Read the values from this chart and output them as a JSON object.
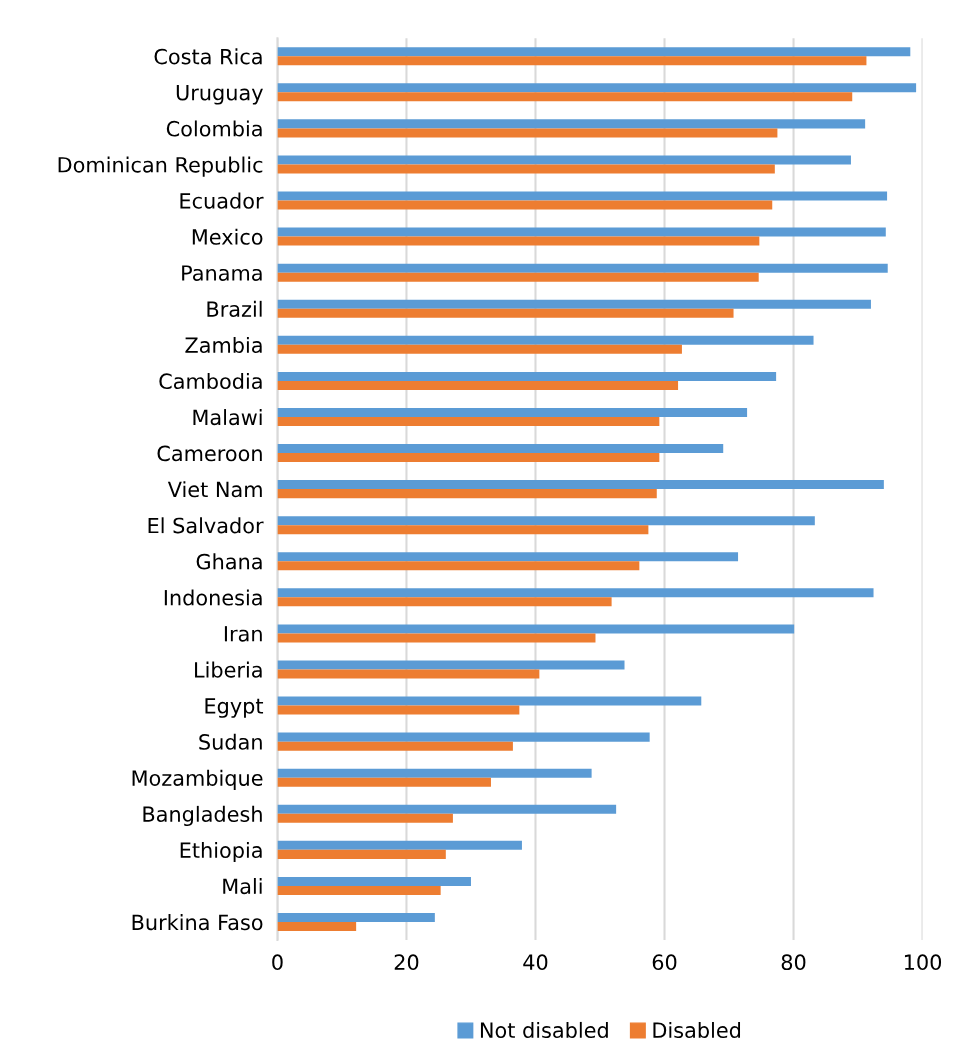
{
  "chart_data": {
    "type": "bar",
    "orientation": "horizontal",
    "categories": [
      "Costa Rica",
      "Uruguay",
      "Colombia",
      "Dominican Republic",
      "Ecuador",
      "Mexico",
      "Panama",
      "Brazil",
      "Zambia",
      "Cambodia",
      "Malawi",
      "Cameroon",
      "Viet Nam",
      "El Salvador",
      "Ghana",
      "Indonesia",
      "Iran",
      "Liberia",
      "Egypt",
      "Sudan",
      "Mozambique",
      "Bangladesh",
      "Ethiopia",
      "Mali",
      "Burkina Faso"
    ],
    "series": [
      {
        "name": "Not disabled",
        "color": "#5b9bd5",
        "values": [
          98.1,
          99.0,
          91.1,
          88.9,
          94.5,
          94.3,
          94.6,
          92.0,
          83.1,
          77.3,
          72.8,
          69.1,
          94.0,
          83.3,
          71.4,
          92.4,
          80.1,
          53.8,
          65.7,
          57.7,
          48.7,
          52.5,
          37.9,
          30.0,
          24.4
        ]
      },
      {
        "name": "Disabled",
        "color": "#ed7d31",
        "values": [
          91.3,
          89.1,
          77.5,
          77.1,
          76.7,
          74.7,
          74.6,
          70.7,
          62.7,
          62.1,
          59.2,
          59.2,
          58.8,
          57.5,
          56.1,
          51.8,
          49.3,
          40.6,
          37.5,
          36.5,
          33.1,
          27.2,
          26.1,
          25.3,
          12.2
        ]
      }
    ],
    "xlim": [
      0,
      100
    ],
    "xticks": [
      0,
      20,
      40,
      60,
      80,
      100
    ],
    "grid": "x",
    "legend": "bottom"
  }
}
